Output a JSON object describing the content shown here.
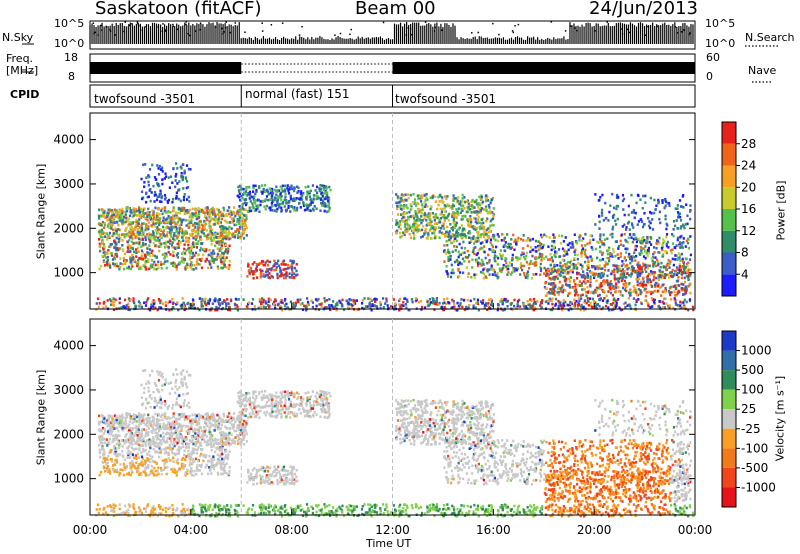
{
  "header": {
    "site": "Saskatoon (fitACF)",
    "beam": "Beam 00",
    "date": "24/Jun/2013"
  },
  "noise_panel": {
    "left_label": "N.Sky",
    "right_label": "N.Search",
    "left_ticks": [
      "10^5",
      "10^0"
    ],
    "right_ticks": [
      "10^5",
      "10^0"
    ]
  },
  "freq_panel": {
    "left_label": "Freq.",
    "left_unit": "[MHz]",
    "right_label": "Nave",
    "left_ticks": [
      "18",
      "8"
    ],
    "right_ticks": [
      "60",
      "0"
    ]
  },
  "cpid_panel": {
    "label": "CPID",
    "segments": [
      {
        "start": 0,
        "end": 6,
        "name": "twofsound -3501"
      },
      {
        "start": 6,
        "end": 12,
        "name": "normal (fast) 151"
      },
      {
        "start": 12,
        "end": 24,
        "name": "twofsound -3501"
      }
    ]
  },
  "chart_data": [
    {
      "type": "heatmap",
      "ylabel": "Slant Range [km]",
      "xlim": [
        0,
        24
      ],
      "ylim": [
        180,
        4600
      ],
      "yticks": [
        1000,
        2000,
        3000,
        4000
      ],
      "colorbar": {
        "label": "Power [dB]",
        "levels": [
          4,
          8,
          12,
          16,
          20,
          24,
          28
        ],
        "colors": [
          "#1c1cff",
          "#3a5dc8",
          "#2f8d6a",
          "#54c24a",
          "#c7cc2c",
          "#f7a024",
          "#f2641a",
          "#e8211a"
        ]
      }
    },
    {
      "type": "heatmap",
      "ylabel": "Slant Range [km]",
      "xlabel": "Time UT",
      "xlim": [
        0,
        24
      ],
      "ylim": [
        180,
        4600
      ],
      "yticks": [
        1000,
        2000,
        3000,
        4000
      ],
      "xticks": [
        "00:00",
        "04:00",
        "08:00",
        "12:00",
        "16:00",
        "20:00",
        "00:00"
      ],
      "colorbar": {
        "label": "Velocity [m s⁻¹]",
        "levels": [
          1000,
          500,
          100,
          25,
          -25,
          -100,
          -500,
          -1000
        ],
        "colors": [
          "#1c3ac8",
          "#2f6ea6",
          "#2f8d5a",
          "#7fd04a",
          "#c8c8c8",
          "#f7a024",
          "#f27a1a",
          "#f2461a",
          "#e8111a"
        ]
      }
    }
  ]
}
